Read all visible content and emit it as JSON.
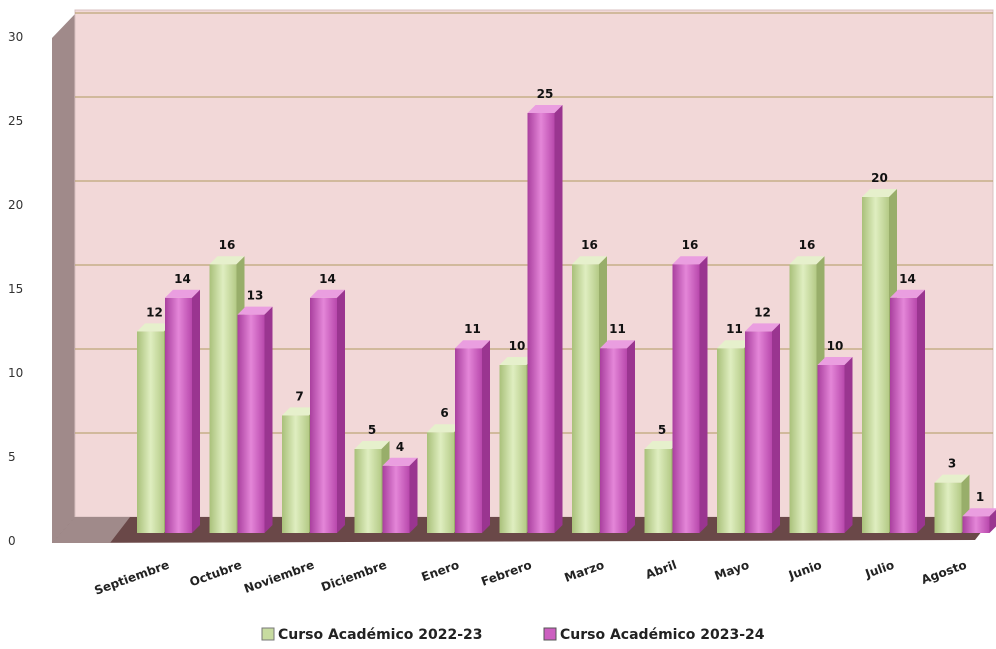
{
  "chart_data": {
    "type": "bar",
    "categories": [
      "Septiembre",
      "Octubre",
      "Noviembre",
      "Diciembre",
      "Enero",
      "Febrero",
      "Marzo",
      "Abril",
      "Mayo",
      "Junio",
      "Julio",
      "Agosto"
    ],
    "series": [
      {
        "name": "Curso Académico 2022-23",
        "values": [
          12,
          16,
          7,
          5,
          6,
          10,
          16,
          5,
          11,
          16,
          20,
          3
        ],
        "color": "#c7dba0"
      },
      {
        "name": "Curso Académico 2023-24",
        "values": [
          14,
          13,
          14,
          4,
          11,
          25,
          11,
          16,
          12,
          10,
          14,
          1
        ],
        "color": "#cc5fc0"
      }
    ],
    "title": "",
    "xlabel": "",
    "ylabel": "",
    "ylim": [
      0,
      30
    ],
    "yticks": [
      0,
      5,
      10,
      15,
      20,
      25,
      30
    ],
    "grid": true,
    "legend_position": "bottom",
    "colors": {
      "wall": "#f2d8d8",
      "gridline": "#b09a60",
      "floor": "#6a4848",
      "side_wall": "#a08a8a"
    }
  }
}
